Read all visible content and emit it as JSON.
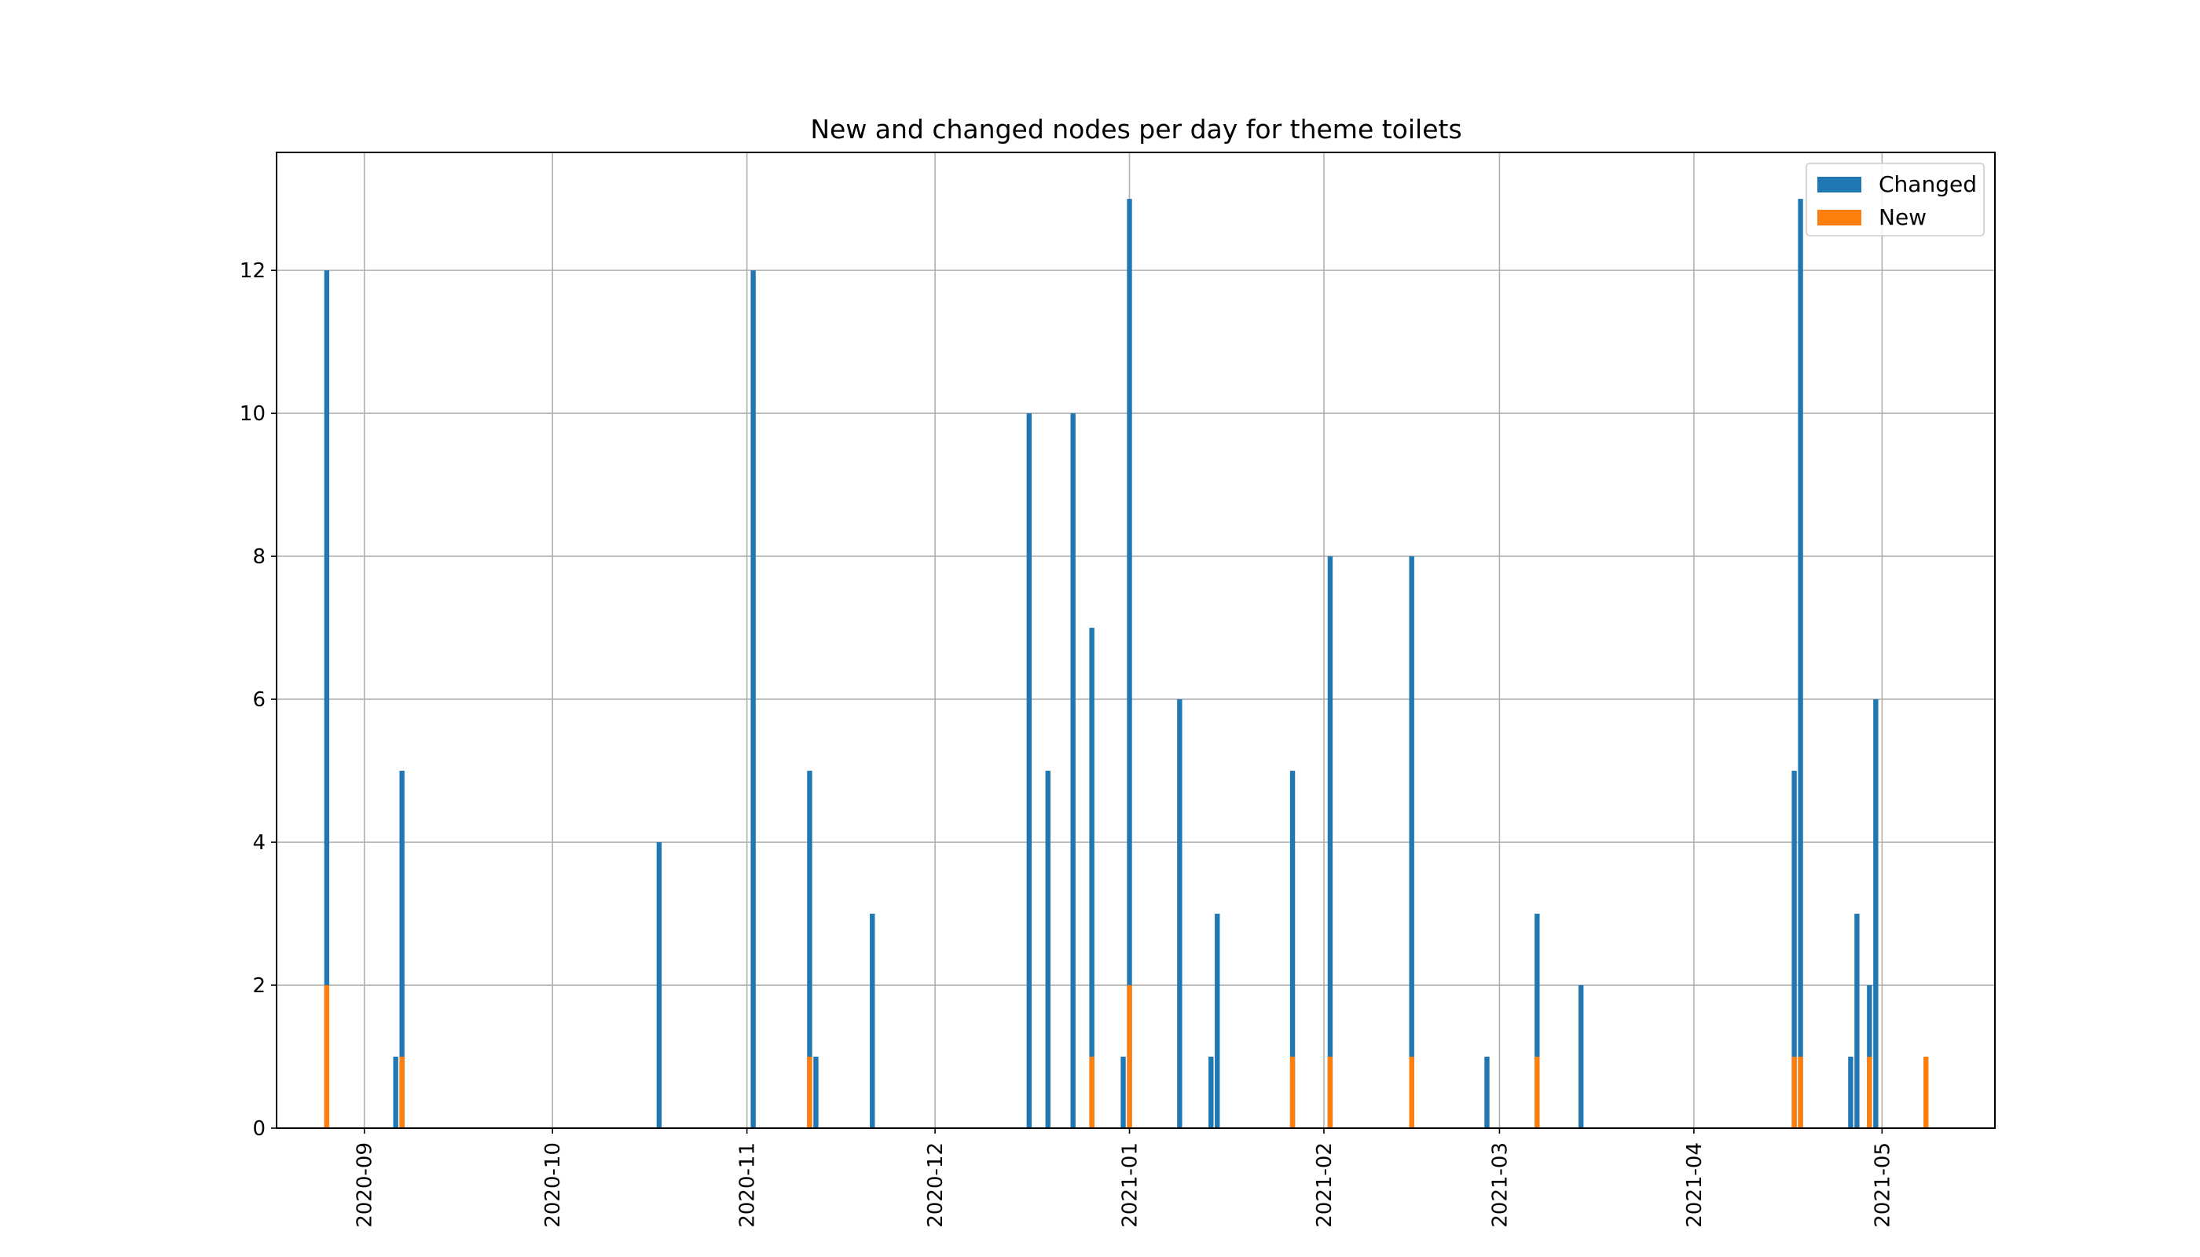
{
  "chart_data": {
    "type": "bar",
    "title": "New and changed nodes per day for theme toilets",
    "xlabel": "",
    "ylabel": "",
    "x_axis_type": "date",
    "xlim": [
      "2020-08-18",
      "2021-05-19"
    ],
    "ylim": [
      0,
      13.65
    ],
    "y_ticks": [
      0,
      2,
      4,
      6,
      8,
      10,
      12
    ],
    "x_ticks": [
      "2020-09",
      "2020-10",
      "2020-11",
      "2020-12",
      "2021-01",
      "2021-02",
      "2021-03",
      "2021-04",
      "2021-05"
    ],
    "grid": true,
    "legend_position": "top-right",
    "bar_width_days": 0.8,
    "series": [
      {
        "name": "Changed",
        "color": "#1f77b4",
        "data": [
          {
            "x": "2020-08-26",
            "y": 12
          },
          {
            "x": "2020-09-06",
            "y": 1
          },
          {
            "x": "2020-09-07",
            "y": 5
          },
          {
            "x": "2020-10-18",
            "y": 4
          },
          {
            "x": "2020-11-02",
            "y": 12
          },
          {
            "x": "2020-11-11",
            "y": 5
          },
          {
            "x": "2020-11-12",
            "y": 1
          },
          {
            "x": "2020-11-21",
            "y": 3
          },
          {
            "x": "2020-12-16",
            "y": 10
          },
          {
            "x": "2020-12-19",
            "y": 5
          },
          {
            "x": "2020-12-23",
            "y": 10
          },
          {
            "x": "2020-12-26",
            "y": 7
          },
          {
            "x": "2020-12-31",
            "y": 1
          },
          {
            "x": "2021-01-01",
            "y": 13
          },
          {
            "x": "2021-01-09",
            "y": 6
          },
          {
            "x": "2021-01-14",
            "y": 1
          },
          {
            "x": "2021-01-15",
            "y": 3
          },
          {
            "x": "2021-01-27",
            "y": 5
          },
          {
            "x": "2021-02-02",
            "y": 8
          },
          {
            "x": "2021-02-15",
            "y": 8
          },
          {
            "x": "2021-02-27",
            "y": 1
          },
          {
            "x": "2021-03-07",
            "y": 3
          },
          {
            "x": "2021-03-14",
            "y": 2
          },
          {
            "x": "2021-04-17",
            "y": 5
          },
          {
            "x": "2021-04-18",
            "y": 13
          },
          {
            "x": "2021-04-26",
            "y": 1
          },
          {
            "x": "2021-04-27",
            "y": 3
          },
          {
            "x": "2021-04-29",
            "y": 2
          },
          {
            "x": "2021-04-30",
            "y": 6
          }
        ]
      },
      {
        "name": "New",
        "color": "#ff7f0e",
        "data": [
          {
            "x": "2020-08-26",
            "y": 2
          },
          {
            "x": "2020-09-07",
            "y": 1
          },
          {
            "x": "2020-11-11",
            "y": 1
          },
          {
            "x": "2020-12-26",
            "y": 1
          },
          {
            "x": "2021-01-01",
            "y": 2
          },
          {
            "x": "2021-01-27",
            "y": 1
          },
          {
            "x": "2021-02-02",
            "y": 1
          },
          {
            "x": "2021-02-15",
            "y": 1
          },
          {
            "x": "2021-03-07",
            "y": 1
          },
          {
            "x": "2021-04-17",
            "y": 1
          },
          {
            "x": "2021-04-18",
            "y": 1
          },
          {
            "x": "2021-04-29",
            "y": 1
          },
          {
            "x": "2021-05-08",
            "y": 1
          }
        ]
      }
    ]
  }
}
